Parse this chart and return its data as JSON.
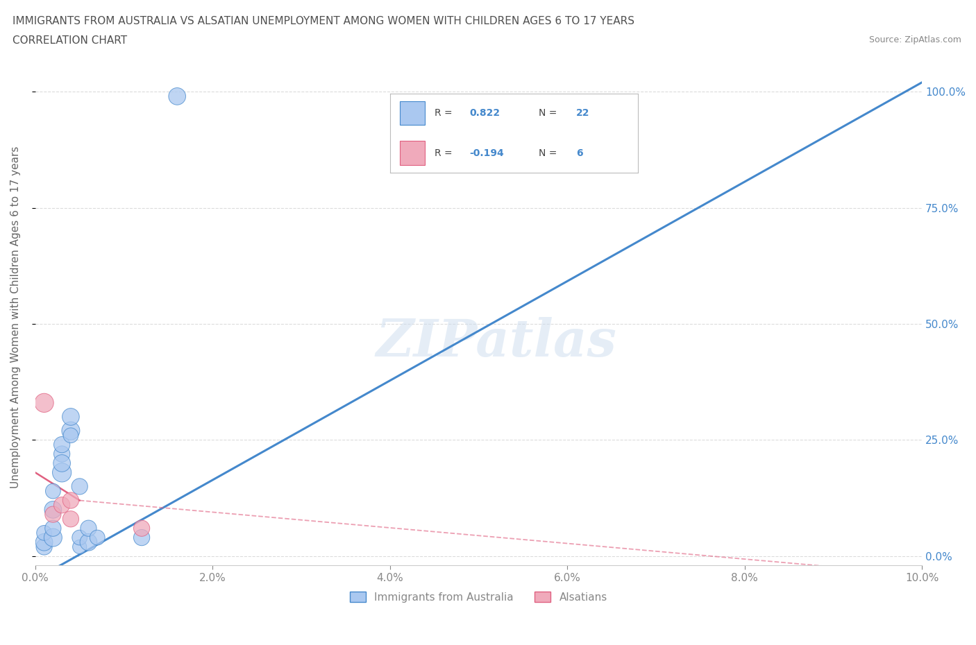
{
  "title_line1": "IMMIGRANTS FROM AUSTRALIA VS ALSATIAN UNEMPLOYMENT AMONG WOMEN WITH CHILDREN AGES 6 TO 17 YEARS",
  "title_line2": "CORRELATION CHART",
  "source": "Source: ZipAtlas.com",
  "ylabel": "Unemployment Among Women with Children Ages 6 to 17 years",
  "xlim": [
    0.0,
    0.1
  ],
  "ylim": [
    -0.02,
    1.05
  ],
  "xticks": [
    0.0,
    0.02,
    0.04,
    0.06,
    0.08,
    0.1
  ],
  "xtick_labels": [
    "0.0%",
    "2.0%",
    "4.0%",
    "6.0%",
    "8.0%",
    "10.0%"
  ],
  "yticks": [
    0.0,
    0.25,
    0.5,
    0.75,
    1.0
  ],
  "ytick_labels": [
    "0.0%",
    "25.0%",
    "50.0%",
    "75.0%",
    "100.0%"
  ],
  "watermark": "ZIPatlas",
  "blue_R": 0.822,
  "blue_N": 22,
  "pink_R": -0.194,
  "pink_N": 6,
  "blue_color": "#aac8f0",
  "pink_color": "#f0aabb",
  "blue_line_color": "#4488cc",
  "pink_line_color": "#e06080",
  "legend_blue_label": "Immigrants from Australia",
  "legend_pink_label": "Alsatians",
  "blue_scatter_x": [
    0.001,
    0.001,
    0.001,
    0.002,
    0.002,
    0.002,
    0.002,
    0.003,
    0.003,
    0.003,
    0.003,
    0.004,
    0.004,
    0.004,
    0.005,
    0.005,
    0.005,
    0.006,
    0.006,
    0.007,
    0.012,
    0.016
  ],
  "blue_scatter_y": [
    0.02,
    0.03,
    0.05,
    0.04,
    0.06,
    0.1,
    0.14,
    0.18,
    0.22,
    0.2,
    0.24,
    0.27,
    0.3,
    0.26,
    0.15,
    0.02,
    0.04,
    0.03,
    0.06,
    0.04,
    0.04,
    0.99
  ],
  "blue_scatter_size": [
    80,
    90,
    70,
    100,
    80,
    90,
    70,
    110,
    80,
    90,
    80,
    100,
    90,
    70,
    80,
    60,
    70,
    90,
    80,
    70,
    80,
    90
  ],
  "pink_scatter_x": [
    0.001,
    0.002,
    0.003,
    0.004,
    0.004,
    0.012
  ],
  "pink_scatter_y": [
    0.33,
    0.09,
    0.11,
    0.08,
    0.12,
    0.06
  ],
  "pink_scatter_size": [
    110,
    80,
    80,
    80,
    80,
    80
  ],
  "blue_line_x0": 0.0,
  "blue_line_x1": 0.1,
  "pink_line_x0": 0.0,
  "pink_line_x1": 0.1,
  "grid_color": "#cccccc",
  "bg_color": "#ffffff",
  "title_color": "#505050",
  "tick_color": "#888888",
  "ylabel_color": "#666666",
  "right_tick_color": "#4488cc"
}
